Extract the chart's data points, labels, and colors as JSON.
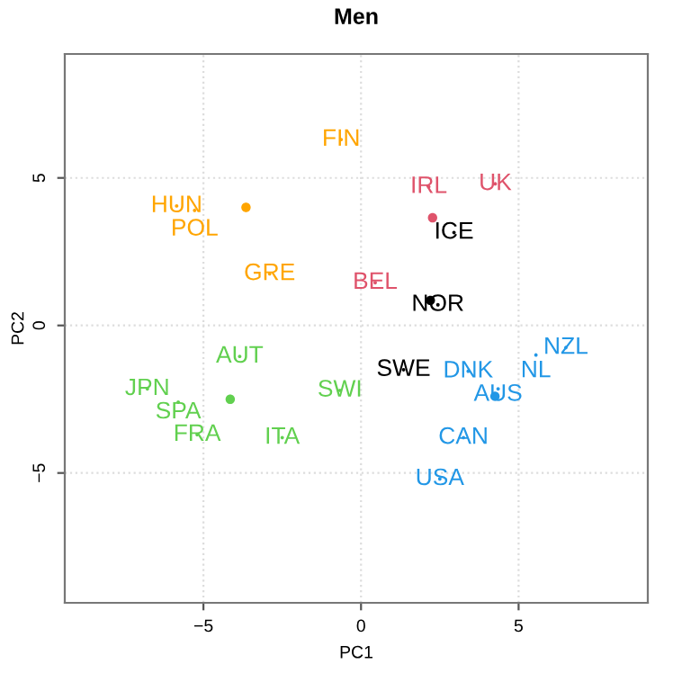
{
  "chart_data": {
    "type": "scatter",
    "title": "Men",
    "xlabel": "PC1",
    "ylabel": "PC2",
    "xlim": [
      -9.4,
      9.1
    ],
    "ylim": [
      -9.4,
      9.2
    ],
    "xticks": [
      {
        "value": -5,
        "label": "−5"
      },
      0,
      5
    ],
    "yticks": [
      {
        "value": -5,
        "label": "−5"
      },
      0,
      5
    ],
    "grid": true,
    "marker": "none",
    "series": [
      {
        "color": "#ffa500",
        "x": [
          -0.63,
          -5.85,
          -5.28,
          -2.9
        ],
        "values": [
          6.3,
          4.05,
          3.9,
          1.75
        ],
        "value_labels": [
          "FIN",
          "HUN",
          "POL",
          "GRE"
        ]
      },
      {
        "color": "#df536b",
        "x": [
          2.15,
          4.26,
          0.45
        ],
        "values": [
          4.7,
          4.8,
          1.45
        ],
        "value_labels": [
          "IRL",
          "UK",
          "BEL"
        ]
      },
      {
        "color": "#000000",
        "x": [
          2.95,
          2.44,
          1.35
        ],
        "values": [
          3.15,
          0.7,
          -1.5
        ],
        "value_labels": [
          "ICE",
          "NOR",
          "SWE"
        ]
      },
      {
        "color": "#61d04f",
        "x": [
          -3.85,
          -6.78,
          -5.8,
          -5.2,
          -2.5,
          -0.67
        ],
        "values": [
          -1.05,
          -2.15,
          -2.6,
          -3.7,
          -3.8,
          -2.2
        ],
        "value_labels": [
          "AUT",
          "JPN",
          "SPA",
          "FRA",
          "ITA",
          "SWI"
        ]
      },
      {
        "color": "#2297e6",
        "x": [
          6.5,
          5.55,
          3.4,
          4.35,
          3.25,
          2.5
        ],
        "values": [
          -0.75,
          -1.0,
          -1.55,
          -2.15,
          -3.8,
          -5.2
        ],
        "value_labels": [
          "NZL",
          "NL",
          "DNK",
          "AUS",
          "CAN",
          "USA"
        ]
      },
      {
        "marker": "circle",
        "colors": [
          "#ffa500",
          "#df536b",
          "#000000",
          "#61d04f",
          "#2297e6"
        ],
        "x": [
          -3.65,
          2.27,
          2.2,
          -4.15,
          4.25
        ],
        "values": [
          4.0,
          3.65,
          0.85,
          -2.5,
          -2.4
        ]
      }
    ]
  }
}
